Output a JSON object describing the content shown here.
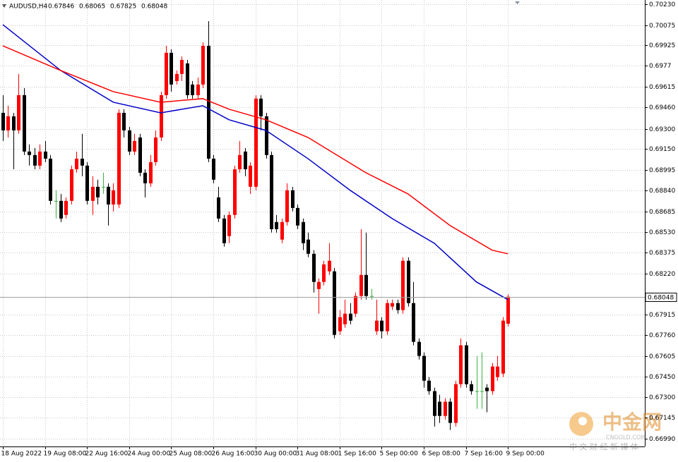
{
  "chart_data": {
    "type": "candlestick",
    "symbol": "AUDUSD,H4",
    "up_color": "#ff0000",
    "down_color": "#000000",
    "doji_color": "#3cb043",
    "ylim": [
      0.6693,
      0.70262
    ],
    "yticks": [
      {
        "value": 0.7023,
        "label": "0.70230"
      },
      0.70075,
      0.69925,
      0.6977,
      0.69615,
      {
        "value": 0.6946,
        "label": "0.69460"
      },
      {
        "value": 0.693,
        "label": "0.69300"
      },
      {
        "value": 0.6915,
        "label": "0.69150"
      },
      0.68995,
      {
        "value": 0.6884,
        "label": "0.68840"
      },
      0.68685,
      {
        "value": 0.6853,
        "label": "0.68530"
      },
      0.68375,
      {
        "value": 0.6822,
        "label": "0.68220"
      },
      0.67915,
      {
        "value": 0.6776,
        "label": "0.67760"
      },
      0.67605,
      {
        "value": 0.6745,
        "label": "0.67450"
      },
      {
        "value": 0.673,
        "label": "0.67300"
      },
      0.67145,
      {
        "value": 0.6699,
        "label": "0.66990"
      }
    ],
    "grid": true,
    "categories": [
      "18 Aug 2022",
      null,
      null,
      null,
      null,
      null,
      null,
      null,
      "19 Aug 08:00",
      null,
      null,
      null,
      null,
      null,
      null,
      null,
      "22 Aug 16:00",
      null,
      null,
      null,
      null,
      null,
      null,
      null,
      "24 Aug 00:00",
      null,
      null,
      null,
      null,
      null,
      null,
      null,
      "25 Aug 08:00",
      null,
      null,
      null,
      null,
      null,
      null,
      null,
      "26 Aug 16:00",
      null,
      null,
      null,
      null,
      null,
      null,
      null,
      "30 Aug 00:00",
      null,
      null,
      null,
      null,
      null,
      null,
      null,
      "31 Aug 08:00",
      null,
      null,
      null,
      null,
      null,
      null,
      null,
      "1 Sep 16:00",
      null,
      null,
      null,
      null,
      null,
      null,
      null,
      "5 Sep 00:00",
      null,
      null,
      null,
      null,
      null,
      null,
      null,
      "6 Sep 08:00",
      null,
      null,
      null,
      null,
      null,
      null,
      null,
      "7 Sep 16:00",
      null,
      null,
      null,
      null,
      null,
      null,
      null,
      "9 Sep 00:00"
    ],
    "open": [
      0.6942,
      0.69289,
      0.69394,
      0.69289,
      0.69552,
      0.69131,
      0.69105,
      0.69026,
      0.69131,
      0.69078,
      0.68763,
      0.68763,
      0.68658,
      0.68763,
      0.68999,
      0.69078,
      0.69026,
      0.68763,
      0.68868,
      0.68868,
      0.68868,
      0.68736,
      0.68736,
      0.6942,
      0.69289,
      0.69131,
      0.69236,
      0.68973,
      0.68894,
      0.69052,
      0.69236,
      0.69552,
      0.69868,
      0.69657,
      0.6971,
      0.69789,
      0.69631,
      0.69552,
      0.69631,
      0.6992,
      0.69078,
      0.68789,
      0.68631,
      0.685,
      0.68658,
      0.68999,
      0.69131,
      0.68868,
      0.68868,
      0.69526,
      0.69394,
      0.69105,
      0.68605,
      0.68474,
      0.68605,
      0.68842,
      0.6871,
      0.68605,
      0.68474,
      0.68368,
      0.68105,
      0.68158,
      0.68237,
      0.68237,
      0.6779,
      0.67842,
      0.67921,
      0.67921,
      0.68053,
      0.6821,
      0.68053,
      0.6779,
      0.67869,
      0.6779,
      0.67974,
      0.68,
      0.67948,
      0.68316,
      0.68,
      0.67711,
      0.67606,
      0.67421,
      0.67343,
      0.67264,
      0.67158,
      0.67264,
      0.67106,
      0.67395,
      0.67685,
      0.67395,
      0.67343,
      0.67343,
      0.67369,
      0.67343,
      0.67448,
      0.67474,
      0.67846
    ],
    "high": [
      0.69552,
      0.69473,
      0.6942,
      0.6971,
      0.69605,
      0.69184,
      0.69157,
      0.69184,
      0.6921,
      0.69105,
      0.68842,
      0.68815,
      0.68789,
      0.69026,
      0.69131,
      0.69263,
      0.69052,
      0.68947,
      0.68921,
      0.68973,
      0.68894,
      0.68894,
      0.69447,
      0.69447,
      0.69315,
      0.69263,
      0.69263,
      0.68999,
      0.69105,
      0.69289,
      0.69578,
      0.6992,
      0.69894,
      0.69736,
      0.69841,
      0.69815,
      0.69657,
      0.69683,
      0.69946,
      0.70104,
      0.69105,
      0.68868,
      0.68658,
      0.68684,
      0.69026,
      0.6921,
      0.69157,
      0.69052,
      0.69552,
      0.69552,
      0.6942,
      0.69131,
      0.68658,
      0.68631,
      0.68894,
      0.68868,
      0.68736,
      0.68631,
      0.68526,
      0.68395,
      0.68184,
      0.68316,
      0.68447,
      0.68263,
      0.67948,
      0.68026,
      0.68,
      0.68079,
      0.68552,
      0.68526,
      0.68105,
      0.68026,
      0.67895,
      0.68026,
      0.68026,
      0.68026,
      0.68342,
      0.68342,
      0.68158,
      0.67737,
      0.67632,
      0.67448,
      0.67369,
      0.67316,
      0.6729,
      0.6729,
      0.67421,
      0.67737,
      0.67711,
      0.67421,
      0.67606,
      0.67632,
      0.67395,
      0.67553,
      0.67606,
      0.67895,
      0.68065
    ],
    "low": [
      0.6921,
      0.69236,
      0.68999,
      0.69263,
      0.69105,
      0.69026,
      0.68999,
      0.68999,
      0.69052,
      0.68736,
      0.68631,
      0.68605,
      0.68631,
      0.68736,
      0.68973,
      0.68947,
      0.68736,
      0.68658,
      0.68736,
      0.68815,
      0.68579,
      0.68684,
      0.6871,
      0.69236,
      0.69105,
      0.69105,
      0.68947,
      0.68789,
      0.68868,
      0.69026,
      0.6921,
      0.69526,
      0.69578,
      0.69631,
      0.69657,
      0.69526,
      0.69526,
      0.69526,
      0.69605,
      0.69052,
      0.68894,
      0.68605,
      0.68421,
      0.68447,
      0.68631,
      0.68973,
      0.68947,
      0.68815,
      0.68842,
      0.69289,
      0.69078,
      0.68526,
      0.68526,
      0.68447,
      0.68579,
      0.68684,
      0.68552,
      0.68395,
      0.68342,
      0.68079,
      0.67921,
      0.68132,
      0.6821,
      0.67737,
      0.67763,
      0.67816,
      0.67842,
      0.67895,
      0.68026,
      0.68026,
      0.68026,
      0.67763,
      0.67737,
      0.67763,
      0.67948,
      0.67921,
      0.67921,
      0.67974,
      0.67685,
      0.67579,
      0.67369,
      0.67316,
      0.67079,
      0.67106,
      0.67132,
      0.67053,
      0.67079,
      0.67369,
      0.67369,
      0.67316,
      0.67211,
      0.67211,
      0.67185,
      0.67316,
      0.67421,
      0.67448,
      0.67825
    ],
    "close": [
      0.69289,
      0.69394,
      0.69289,
      0.69552,
      0.69131,
      0.69105,
      0.69026,
      0.69131,
      0.69078,
      0.68763,
      0.68763,
      0.68631,
      0.68763,
      0.68999,
      0.69078,
      0.69026,
      0.68763,
      0.68868,
      0.68789,
      0.68868,
      0.68736,
      0.68842,
      0.6942,
      0.69289,
      0.69131,
      0.6921,
      0.68973,
      0.68894,
      0.69052,
      0.69236,
      0.69552,
      0.69868,
      0.69631,
      0.6971,
      0.69815,
      0.69552,
      0.69552,
      0.69631,
      0.6992,
      0.69078,
      0.68921,
      0.68631,
      0.68447,
      0.68658,
      0.68999,
      0.69105,
      0.68999,
      0.69026,
      0.69526,
      0.69394,
      0.69105,
      0.68552,
      0.68552,
      0.68605,
      0.68842,
      0.6871,
      0.68579,
      0.68447,
      0.68368,
      0.68158,
      0.68158,
      0.68289,
      0.68316,
      0.67763,
      0.67895,
      0.67921,
      0.67869,
      0.68053,
      0.6821,
      0.68053,
      0.68053,
      0.67869,
      0.6779,
      0.68,
      0.68,
      0.67948,
      0.68316,
      0.68,
      0.67711,
      0.67606,
      0.67421,
      0.67343,
      0.67158,
      0.67158,
      0.67264,
      0.67106,
      0.67395,
      0.67685,
      0.67395,
      0.67343,
      0.67343,
      0.67343,
      0.67343,
      0.67527,
      0.67527,
      0.67869,
      0.68048
    ],
    "moving_averages": [
      {
        "color": "#0000c8",
        "x": [
          0,
          11,
          21,
          30,
          38,
          43,
          50,
          58,
          66,
          74,
          82,
          90,
          96
        ],
        "values": [
          0.70078,
          0.69736,
          0.69499,
          0.6942,
          0.69473,
          0.69368,
          0.69289,
          0.69078,
          0.68842,
          0.68631,
          0.68447,
          0.68158,
          0.68026
        ]
      },
      {
        "color": "#ff0000",
        "x": [
          0,
          11,
          21,
          30,
          38,
          43,
          50,
          58,
          69,
          77,
          85,
          93,
          96
        ],
        "values": [
          0.6992,
          0.69736,
          0.69578,
          0.69499,
          0.69526,
          0.69447,
          0.69368,
          0.69236,
          0.68973,
          0.68815,
          0.68579,
          0.68395,
          0.68368
        ]
      }
    ]
  },
  "watermark": {
    "name": "中金网",
    "site": "CNGOLD.COM",
    "tagline": "中 文 财 经 新 媒 体"
  }
}
